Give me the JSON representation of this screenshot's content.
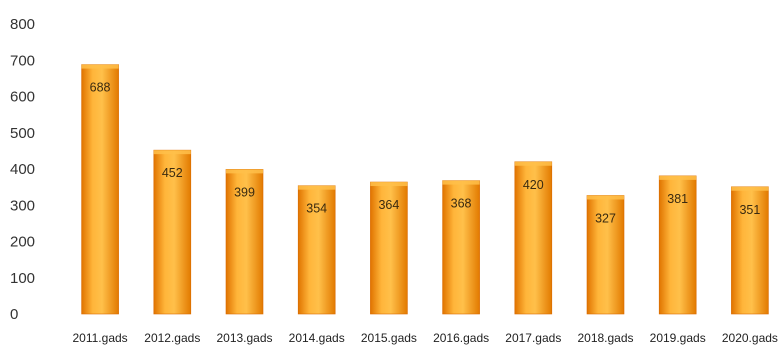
{
  "chart_data": {
    "type": "bar",
    "categories": [
      "2011.gads",
      "2012.gads",
      "2013.gads",
      "2014.gads",
      "2015.gads",
      "2016.gads",
      "2017.gads",
      "2018.gads",
      "2019.gads",
      "2020.gads"
    ],
    "values": [
      688,
      452,
      399,
      354,
      364,
      368,
      420,
      327,
      381,
      351
    ],
    "data_labels": [
      "688",
      "452",
      "399",
      "354",
      "364",
      "368",
      "420",
      "327",
      "381",
      "351"
    ],
    "yticks": [
      "0",
      "100",
      "200",
      "300",
      "400",
      "500",
      "600",
      "700",
      "800"
    ],
    "ylim": [
      0,
      800
    ],
    "grid": false,
    "legend": "none",
    "bar_color": "#f7931e",
    "bar_color_light": "#ffc04a",
    "bar_color_dark": "#d96a00"
  }
}
